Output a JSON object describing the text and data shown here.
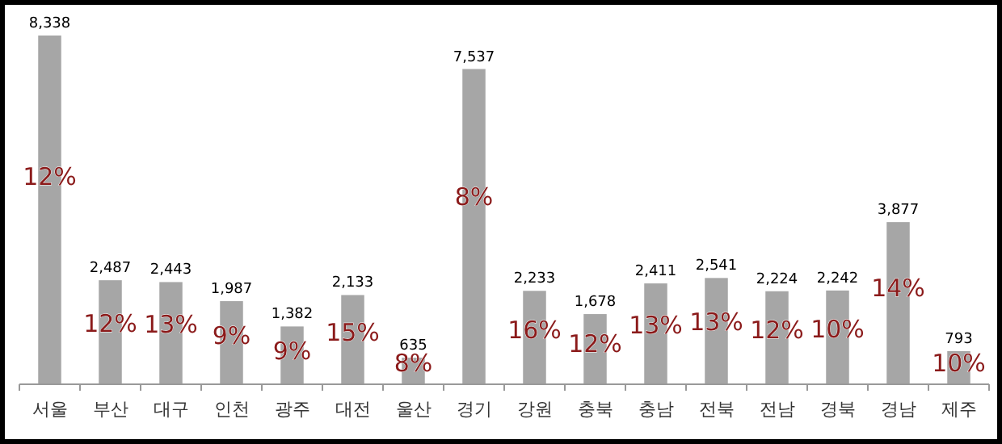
{
  "chart_data": {
    "type": "bar",
    "categories": [
      "서울",
      "부산",
      "대구",
      "인천",
      "광주",
      "대전",
      "울산",
      "경기",
      "강원",
      "충북",
      "충남",
      "전북",
      "전남",
      "경북",
      "경남",
      "제주"
    ],
    "values": [
      8338,
      2487,
      2443,
      1987,
      1382,
      2133,
      635,
      7537,
      2233,
      1678,
      2411,
      2541,
      2224,
      2242,
      3877,
      793
    ],
    "value_labels": [
      "8,338",
      "2,487",
      "2,443",
      "1,987",
      "1,382",
      "2,133",
      "635",
      "7,537",
      "2,233",
      "1,678",
      "2,411",
      "2,541",
      "2,224",
      "2,242",
      "3,877",
      "793"
    ],
    "color": "#a6a6a6",
    "annotations": [
      "12%",
      "12%",
      "13%",
      "9%",
      "9%",
      "15%",
      "8%",
      "8%",
      "16%",
      "12%",
      "13%",
      "13%",
      "12%",
      "10%",
      "14%",
      "10%"
    ]
  }
}
